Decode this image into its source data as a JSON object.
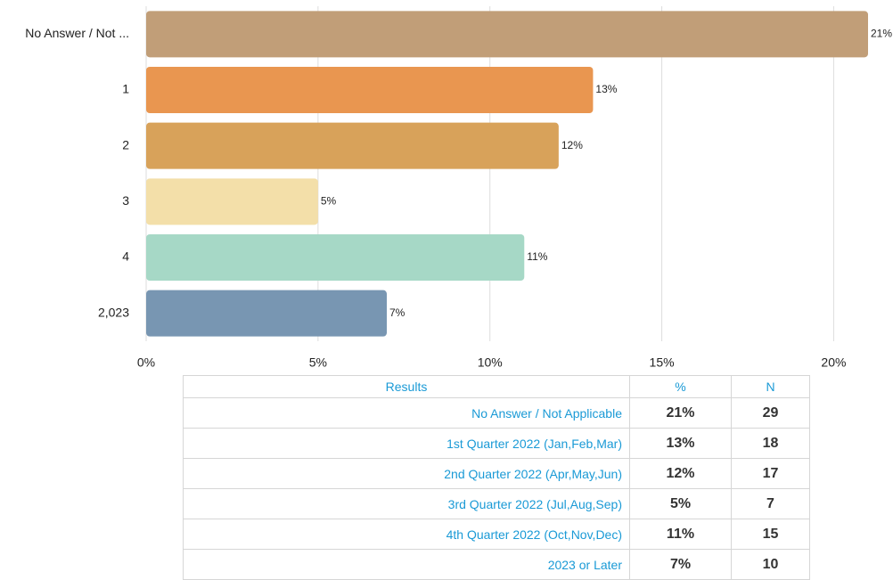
{
  "chart_data": {
    "type": "barh",
    "categories": [
      "No Answer / Not ...",
      "1",
      "2",
      "3",
      "4",
      "2,023"
    ],
    "values": [
      21,
      13,
      12,
      5,
      11,
      7
    ],
    "value_labels": [
      "21%",
      "13%",
      "12%",
      "5%",
      "11%",
      "7%"
    ],
    "colors": [
      "#c19e78",
      "#e99650",
      "#d8a25a",
      "#f3dfa9",
      "#a6d8c6",
      "#7896b2"
    ],
    "xlim": [
      0,
      21
    ],
    "xticks": [
      {
        "value": 0,
        "label": "0%"
      },
      {
        "value": 5,
        "label": "5%"
      },
      {
        "value": 10,
        "label": "10%"
      },
      {
        "value": 15,
        "label": "15%"
      },
      {
        "value": 20,
        "label": "20%"
      }
    ],
    "grid": true
  },
  "table": {
    "headers": [
      "Results",
      "%",
      "N"
    ],
    "rows": [
      [
        "No Answer / Not Applicable",
        "21%",
        "29"
      ],
      [
        "1st Quarter 2022 (Jan,Feb,Mar)",
        "13%",
        "18"
      ],
      [
        "2nd Quarter 2022 (Apr,May,Jun)",
        "12%",
        "17"
      ],
      [
        "3rd Quarter 2022 (Jul,Aug,Sep)",
        "5%",
        "7"
      ],
      [
        "4th Quarter 2022 (Oct,Nov,Dec)",
        "11%",
        "15"
      ],
      [
        "2023 or Later",
        "7%",
        "10"
      ]
    ]
  }
}
